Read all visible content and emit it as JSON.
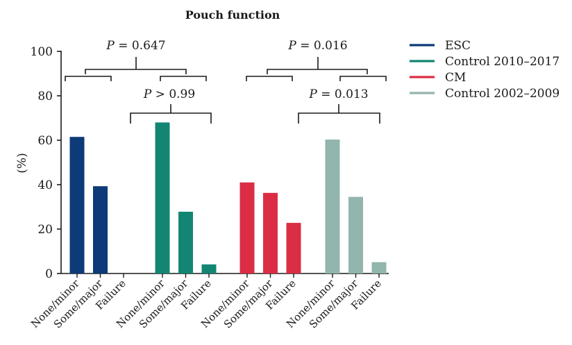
{
  "chart_data": {
    "type": "bar",
    "title": "Pouch function",
    "xlabel": "",
    "ylabel": "(%)",
    "ylim": [
      0,
      100
    ],
    "yticks": [
      0,
      20,
      40,
      60,
      80,
      100
    ],
    "grid": false,
    "legend_position": "right",
    "categories": [
      "None/minor",
      "Some/major",
      "Failure"
    ],
    "series": [
      {
        "name": "ESC",
        "color": "#0d3a78",
        "values": [
          61.5,
          39.3,
          0
        ]
      },
      {
        "name": "Control 2010–2017",
        "color": "#128672",
        "values": [
          68.0,
          27.8,
          4.1
        ]
      },
      {
        "name": "CM",
        "color": "#db2e45",
        "values": [
          41.0,
          36.3,
          22.8
        ]
      },
      {
        "name": "Control 2002–2009",
        "color": "#92b5ad",
        "values": [
          60.3,
          34.5,
          5.1
        ]
      }
    ],
    "annotations": [
      {
        "id": "p1",
        "label": "P",
        "rest": " = 0.647",
        "between": [
          "ESC",
          "Control 2010–2017"
        ]
      },
      {
        "id": "p2",
        "label": "P",
        "rest": " > 0.99",
        "between": [
          "ESC",
          "Control 2010–2017"
        ]
      },
      {
        "id": "p3",
        "label": "P",
        "rest": " = 0.016",
        "between": [
          "CM",
          "Control 2002–2009"
        ]
      },
      {
        "id": "p4",
        "label": "P",
        "rest": " = 0.013",
        "between": [
          "CM",
          "Control 2002–2009"
        ]
      }
    ]
  }
}
